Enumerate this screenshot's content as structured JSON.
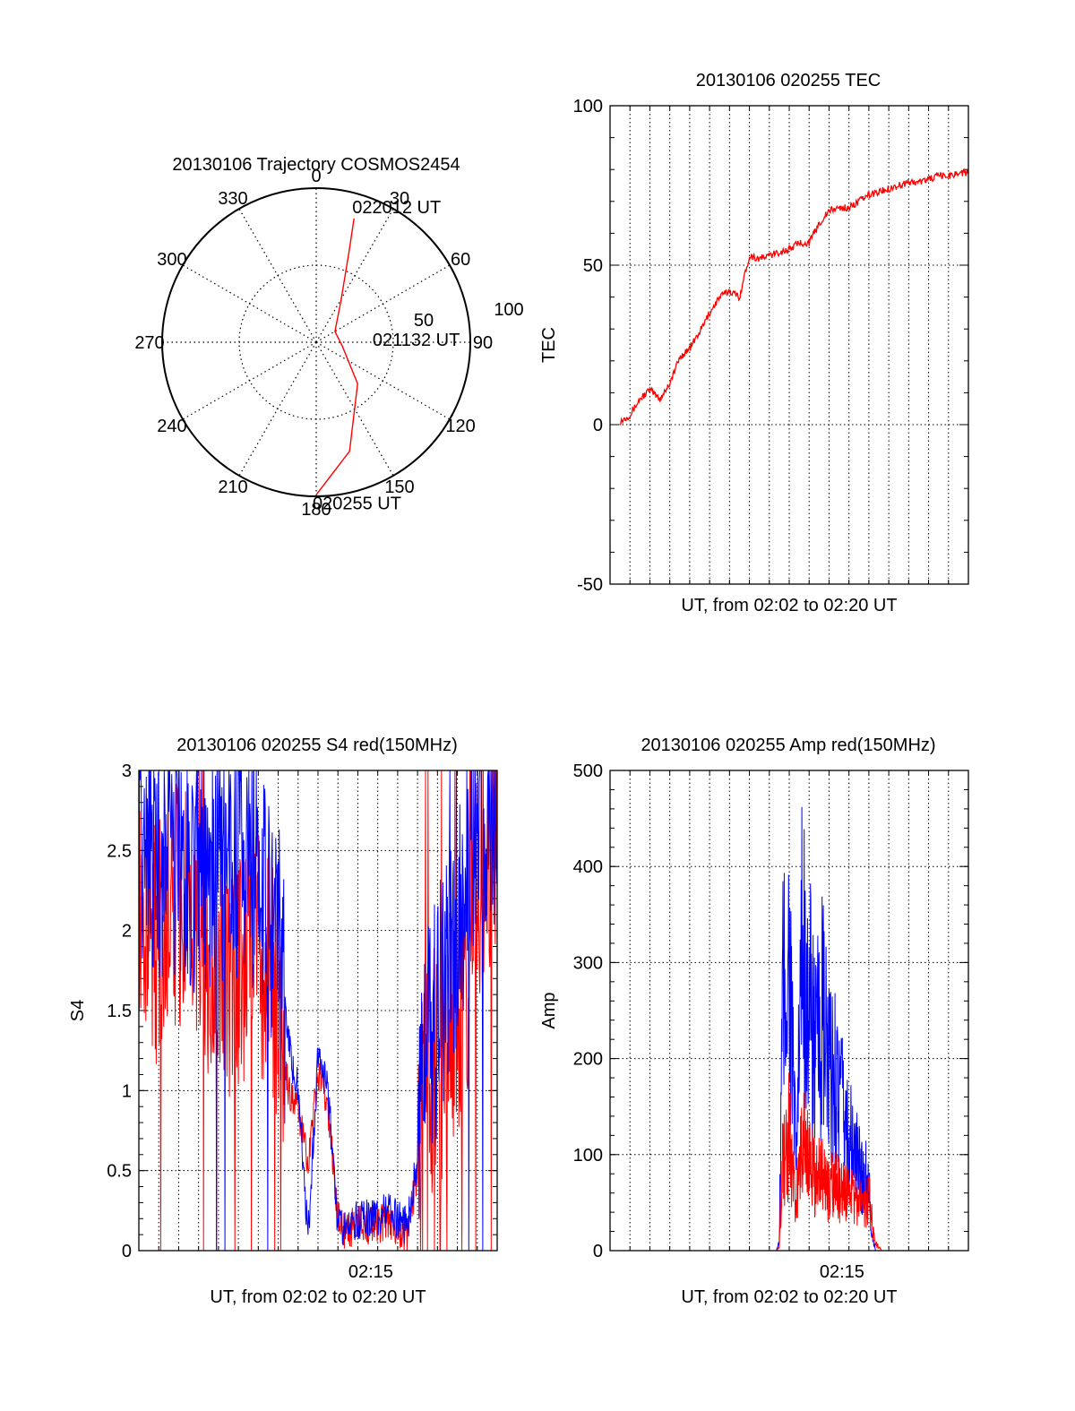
{
  "colors": {
    "red": "#ff0000",
    "blue": "#0000ff",
    "axis": "#000000",
    "grid": "#000000"
  },
  "chart_data": [
    {
      "id": "polar",
      "type": "polar",
      "title": "20130106 Trajectory COSMOS2454",
      "angle_labels": [
        {
          "deg": 0,
          "text": "0"
        },
        {
          "deg": 30,
          "text": "30"
        },
        {
          "deg": 60,
          "text": "60"
        },
        {
          "deg": 90,
          "text": "90"
        },
        {
          "deg": 120,
          "text": "120"
        },
        {
          "deg": 150,
          "text": "150"
        },
        {
          "deg": 180,
          "text": "180"
        },
        {
          "deg": 210,
          "text": "210"
        },
        {
          "deg": 240,
          "text": "240"
        },
        {
          "deg": 270,
          "text": "270"
        },
        {
          "deg": 300,
          "text": "300"
        },
        {
          "deg": 330,
          "text": "330"
        }
      ],
      "radial_max": 100,
      "radial_ring": 50,
      "radial_labels": [
        "50",
        "100"
      ],
      "annotations": [
        {
          "text": "022012 UT",
          "point": "end"
        },
        {
          "text": "021132 UT",
          "point": "middle"
        },
        {
          "text": "020255 UT",
          "point": "start"
        }
      ],
      "trajectory": [
        {
          "az": 180,
          "zd": 99
        },
        {
          "az": 163,
          "zd": 74
        },
        {
          "az": 135,
          "zd": 38
        },
        {
          "az": 98,
          "zd": 17
        },
        {
          "az": 60,
          "zd": 14
        },
        {
          "az": 31,
          "zd": 31
        },
        {
          "az": 20,
          "zd": 62
        },
        {
          "az": 17,
          "zd": 84
        }
      ]
    },
    {
      "id": "tec",
      "type": "line",
      "title": "20130106 020255 TEC",
      "xlabel": "UT, from 02:02 to 02:20 UT",
      "ylabel": "TEC",
      "ylim": [
        -50,
        100
      ],
      "yticks": [
        "-50",
        "0",
        "50",
        "100"
      ],
      "ytick_values": [
        -50,
        0,
        50,
        100
      ],
      "xlim": [
        0,
        1080
      ],
      "series": [
        {
          "color": "red",
          "x": [
            30,
            60,
            90,
            120,
            150,
            180,
            210,
            240,
            270,
            300,
            330,
            360,
            390,
            420,
            450,
            480,
            510,
            540,
            570,
            600,
            630,
            660,
            690,
            720,
            750,
            780,
            810,
            840,
            870,
            900,
            930,
            960,
            990,
            1020,
            1050
          ],
          "y": [
            1,
            3,
            8,
            11,
            8,
            13,
            21,
            24,
            29,
            35,
            40,
            42,
            40,
            53,
            52,
            53,
            54,
            55,
            57,
            57,
            63,
            67,
            68,
            68,
            70,
            72,
            73,
            74,
            75,
            76,
            76,
            77,
            78,
            78,
            79
          ]
        }
      ]
    },
    {
      "id": "s4",
      "type": "line",
      "title": "20130106 020255 S4 red(150MHz)",
      "xlabel": "UT, from 02:02 to 02:20 UT",
      "ylabel": "S4",
      "ylim": [
        0,
        3
      ],
      "yticks": [
        "0",
        "0.5",
        "1",
        "1.5",
        "2",
        "2.5",
        "3"
      ],
      "ytick_values": [
        0,
        0.5,
        1,
        1.5,
        2,
        2.5,
        3
      ],
      "xlim": [
        0,
        1080
      ],
      "xtick_label": "02:15",
      "xtick_value": 780,
      "series": [
        {
          "color": "red",
          "x": [
            0,
            60,
            120,
            180,
            240,
            300,
            360,
            420,
            450,
            480,
            510,
            540,
            570,
            600,
            630,
            660,
            690,
            720,
            750,
            780,
            810,
            840,
            870,
            900,
            930,
            960,
            990,
            1020,
            1050,
            1080
          ],
          "y": [
            2.3,
            1.9,
            2.2,
            2.0,
            1.6,
            1.7,
            1.9,
            1.6,
            1.0,
            0.9,
            0.5,
            1.1,
            0.9,
            0.2,
            0.1,
            0.2,
            0.15,
            0.15,
            0.2,
            0.15,
            0.1,
            0.5,
            1.1,
            1.2,
            1.3,
            1.5,
            1.8,
            2.2,
            2.5,
            2.5
          ]
        },
        {
          "color": "blue",
          "x": [
            0,
            60,
            120,
            180,
            240,
            300,
            360,
            420,
            450,
            480,
            510,
            540,
            570,
            600,
            630,
            660,
            690,
            720,
            750,
            780,
            810,
            840,
            870,
            900,
            930,
            960,
            990,
            1020,
            1050,
            1080
          ],
          "y": [
            2.6,
            2.4,
            2.5,
            2.3,
            2.4,
            2.5,
            2.3,
            2.0,
            1.3,
            1.0,
            0.1,
            1.2,
            1.0,
            0.15,
            0.15,
            0.2,
            0.2,
            0.2,
            0.25,
            0.2,
            0.15,
            0.6,
            1.3,
            1.5,
            1.8,
            2.0,
            2.4,
            2.8,
            2.8,
            2.7
          ]
        }
      ]
    },
    {
      "id": "amp",
      "type": "line",
      "title": "20130106 020255 Amp red(150MHz)",
      "xlabel": "UT, from 02:02 to 02:20 UT",
      "ylabel": "Amp",
      "ylim": [
        0,
        500
      ],
      "yticks": [
        "0",
        "100",
        "200",
        "300",
        "400",
        "500"
      ],
      "ytick_values": [
        0,
        100,
        200,
        300,
        400,
        500
      ],
      "xlim": [
        0,
        1080
      ],
      "xtick_label": "02:15",
      "xtick_value": 780,
      "series": [
        {
          "color": "blue",
          "x": [
            0,
            100,
            200,
            300,
            400,
            500,
            510,
            520,
            540,
            560,
            580,
            600,
            620,
            640,
            660,
            680,
            700,
            720,
            740,
            760,
            780,
            790,
            800,
            820,
            900,
            1000,
            1080
          ],
          "y": [
            0,
            0,
            0,
            0,
            0,
            0,
            10,
            320,
            380,
            110,
            400,
            320,
            250,
            300,
            220,
            230,
            180,
            150,
            120,
            100,
            90,
            20,
            0,
            0,
            0,
            0,
            0
          ]
        },
        {
          "color": "red",
          "x": [
            0,
            100,
            200,
            300,
            400,
            500,
            510,
            520,
            540,
            560,
            580,
            600,
            620,
            640,
            660,
            680,
            700,
            720,
            740,
            760,
            780,
            790,
            800,
            820,
            900,
            1000,
            1080
          ],
          "y": [
            0,
            0,
            0,
            0,
            0,
            0,
            5,
            120,
            150,
            60,
            160,
            120,
            90,
            100,
            80,
            90,
            75,
            70,
            65,
            60,
            70,
            40,
            10,
            0,
            0,
            0,
            0
          ]
        }
      ]
    }
  ]
}
